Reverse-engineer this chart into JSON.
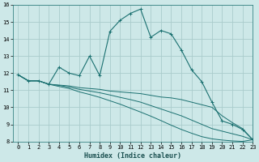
{
  "xlabel": "Humidex (Indice chaleur)",
  "ylabel": "",
  "xlim": [
    -0.5,
    23
  ],
  "ylim": [
    8,
    16
  ],
  "yticks": [
    8,
    9,
    10,
    11,
    12,
    13,
    14,
    15,
    16
  ],
  "xticks": [
    0,
    1,
    2,
    3,
    4,
    5,
    6,
    7,
    8,
    9,
    10,
    11,
    12,
    13,
    14,
    15,
    16,
    17,
    18,
    19,
    20,
    21,
    22,
    23
  ],
  "background_color": "#cde8e8",
  "grid_color": "#aacccc",
  "line_color": "#1a7070",
  "line1_x": [
    0,
    1,
    2,
    3,
    4,
    5,
    6,
    7,
    8,
    9,
    10,
    11,
    12,
    13,
    14,
    15,
    16,
    17,
    18,
    19,
    20,
    21,
    22,
    23
  ],
  "line1_y": [
    11.9,
    11.55,
    11.55,
    11.35,
    12.35,
    12.0,
    11.85,
    13.0,
    11.85,
    14.45,
    15.1,
    15.5,
    15.75,
    14.1,
    14.5,
    14.3,
    13.35,
    12.2,
    11.5,
    10.3,
    9.2,
    9.0,
    8.7,
    8.1
  ],
  "line2_x": [
    0,
    1,
    2,
    3,
    4,
    5,
    6,
    7,
    8,
    9,
    10,
    11,
    12,
    13,
    14,
    15,
    16,
    17,
    18,
    19,
    20,
    21,
    22,
    23
  ],
  "line2_y": [
    11.9,
    11.55,
    11.55,
    11.35,
    11.3,
    11.25,
    11.15,
    11.1,
    11.05,
    10.95,
    10.9,
    10.85,
    10.8,
    10.7,
    10.6,
    10.55,
    10.45,
    10.3,
    10.15,
    10.0,
    9.5,
    9.1,
    8.75,
    8.1
  ],
  "line3_x": [
    0,
    1,
    2,
    3,
    4,
    5,
    6,
    7,
    8,
    9,
    10,
    11,
    12,
    13,
    14,
    15,
    16,
    17,
    18,
    19,
    20,
    21,
    22,
    23
  ],
  "line3_y": [
    11.9,
    11.55,
    11.55,
    11.35,
    11.28,
    11.18,
    11.05,
    10.95,
    10.85,
    10.72,
    10.58,
    10.45,
    10.3,
    10.1,
    9.9,
    9.7,
    9.5,
    9.25,
    9.0,
    8.75,
    8.6,
    8.45,
    8.3,
    8.1
  ],
  "line4_x": [
    0,
    1,
    2,
    3,
    4,
    5,
    6,
    7,
    8,
    9,
    10,
    11,
    12,
    13,
    14,
    15,
    16,
    17,
    18,
    19,
    20,
    21,
    22,
    23
  ],
  "line4_y": [
    11.9,
    11.55,
    11.55,
    11.35,
    11.22,
    11.1,
    10.9,
    10.75,
    10.58,
    10.38,
    10.18,
    9.95,
    9.72,
    9.48,
    9.22,
    8.95,
    8.7,
    8.48,
    8.28,
    8.15,
    8.08,
    8.03,
    8.0,
    8.1
  ]
}
